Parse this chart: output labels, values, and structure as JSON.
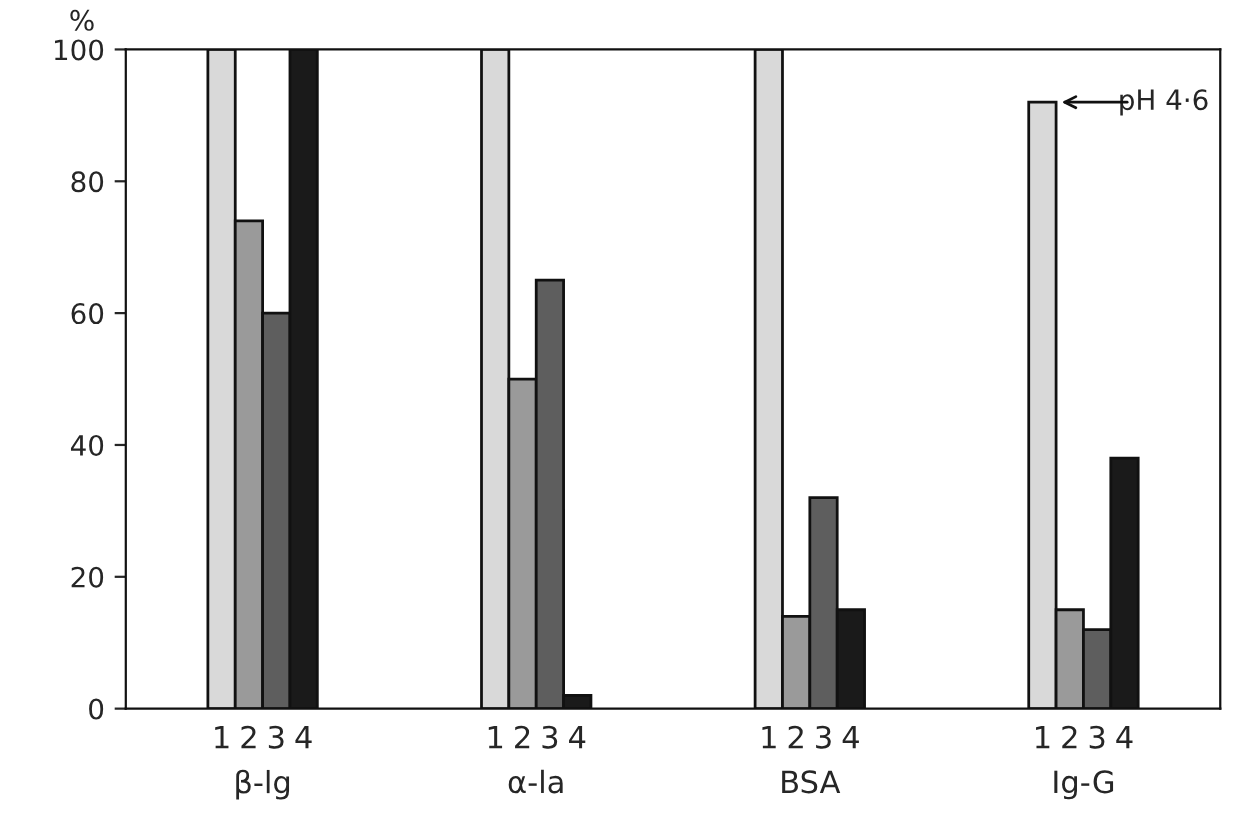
{
  "chart_data": {
    "type": "bar",
    "ylabel": "%",
    "categories": [
      "β-lg",
      "α-la",
      "BSA",
      "Ig-G"
    ],
    "series": [
      {
        "name": "1",
        "color": "#d9d9d9",
        "values": [
          100,
          100,
          100,
          92
        ]
      },
      {
        "name": "2",
        "color": "#9a9a9a",
        "values": [
          74,
          50,
          14,
          15
        ]
      },
      {
        "name": "3",
        "color": "#5e5e5e",
        "values": [
          60,
          65,
          32,
          12
        ]
      },
      {
        "name": "4",
        "color": "#1a1a1a",
        "values": [
          100,
          2,
          15,
          38
        ]
      }
    ],
    "ylim": [
      0,
      100
    ],
    "yticks": [
      0,
      20,
      40,
      60,
      80,
      100
    ],
    "grid": false,
    "legend": false,
    "annotations": [
      "pH 4·6"
    ]
  }
}
